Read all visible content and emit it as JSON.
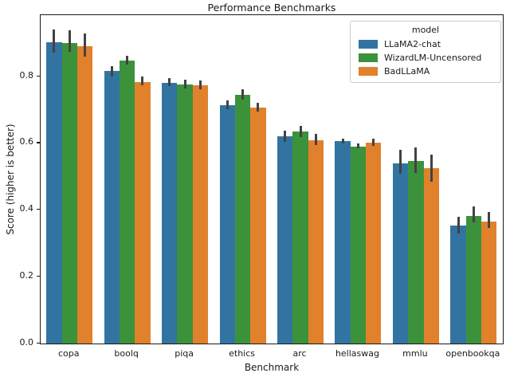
{
  "chart_data": {
    "type": "bar",
    "title": "Performance Benchmarks",
    "xlabel": "Benchmark",
    "ylabel": "Score (higher is better)",
    "categories": [
      "copa",
      "boolq",
      "piqa",
      "ethics",
      "arc",
      "hellaswag",
      "mmlu",
      "openbookqa"
    ],
    "series": [
      {
        "name": "LLaMA2-chat",
        "color": "#3274a1",
        "values": [
          0.903,
          0.816,
          0.782,
          0.714,
          0.62,
          0.606,
          0.539,
          0.353
        ],
        "err_low": [
          0.871,
          0.8,
          0.77,
          0.701,
          0.604,
          0.598,
          0.507,
          0.329
        ],
        "err_high": [
          0.94,
          0.829,
          0.794,
          0.727,
          0.636,
          0.614,
          0.58,
          0.378
        ]
      },
      {
        "name": "WizardLM-Uncensored",
        "color": "#3b923b",
        "values": [
          0.9,
          0.847,
          0.776,
          0.745,
          0.635,
          0.591,
          0.547,
          0.383
        ],
        "err_low": [
          0.873,
          0.834,
          0.764,
          0.73,
          0.617,
          0.583,
          0.511,
          0.361
        ],
        "err_high": [
          0.938,
          0.861,
          0.789,
          0.76,
          0.651,
          0.599,
          0.586,
          0.41
        ]
      },
      {
        "name": "BadLLaMA",
        "color": "#e1812c",
        "values": [
          0.891,
          0.784,
          0.774,
          0.707,
          0.608,
          0.602,
          0.525,
          0.365
        ],
        "err_low": [
          0.859,
          0.772,
          0.761,
          0.693,
          0.593,
          0.592,
          0.485,
          0.345
        ],
        "err_high": [
          0.927,
          0.8,
          0.787,
          0.721,
          0.626,
          0.612,
          0.564,
          0.394
        ]
      }
    ],
    "ylim": [
      0,
      0.983
    ],
    "yticks": [
      0.0,
      0.2,
      0.4,
      0.6,
      0.8
    ],
    "legend": {
      "title": "model",
      "position": "upper right"
    },
    "grid": false,
    "error_bar_color": "#424242",
    "bar_group_fraction": 0.8
  }
}
